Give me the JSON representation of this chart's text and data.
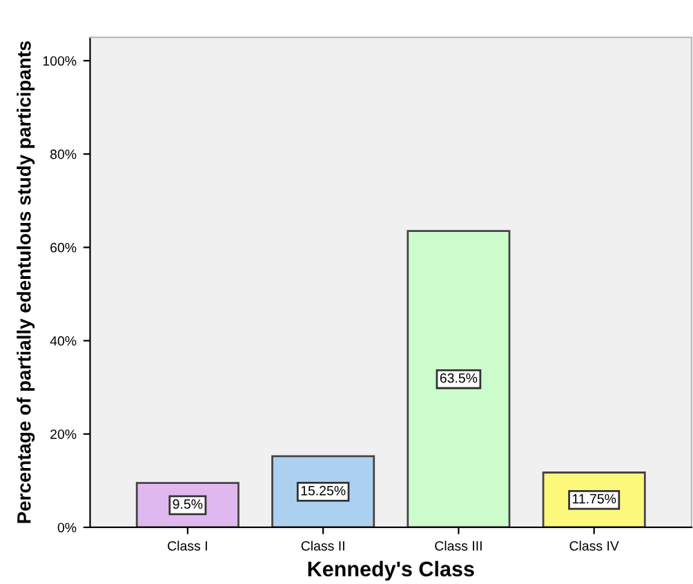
{
  "chart_data": {
    "type": "bar",
    "xlabel": "Kennedy's Class",
    "ylabel": "Percentage of partially edentulous study participants",
    "categories": [
      "Class I",
      "Class II",
      "Class III",
      "Class IV"
    ],
    "values": [
      9.5,
      15.25,
      63.5,
      11.75
    ],
    "colors": [
      "#e0b8f0",
      "#acd0f0",
      "#ccfccc",
      "#fcf87c"
    ],
    "value_labels": [
      "9.5%",
      "15.25%",
      "63.5%",
      "11.75%"
    ],
    "ylim": [
      0,
      105
    ],
    "yticks": [
      {
        "value": 0,
        "label": "0%"
      },
      {
        "value": 20,
        "label": "20%"
      },
      {
        "value": 40,
        "label": "40%"
      },
      {
        "value": 60,
        "label": "60%"
      },
      {
        "value": 80,
        "label": "80%"
      },
      {
        "value": 100,
        "label": "100%"
      }
    ],
    "grid": false
  }
}
